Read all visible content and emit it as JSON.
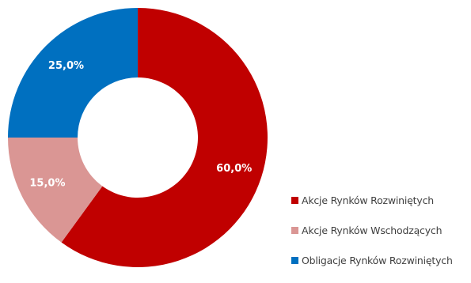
{
  "chart_data": {
    "type": "pie",
    "subtype": "donut",
    "categories": [
      "Akcje Rynków Rozwiniętych",
      "Akcje Rynków Wschodzących",
      "Obligacje Rynków Rozwiniętych"
    ],
    "values": [
      60.0,
      15.0,
      25.0
    ],
    "data_labels": [
      "60,0%",
      "15,0%",
      "25,0%"
    ],
    "colors": [
      "#c00000",
      "#da9694",
      "#0070c0"
    ],
    "legend_position": "bottom-right",
    "title": ""
  }
}
